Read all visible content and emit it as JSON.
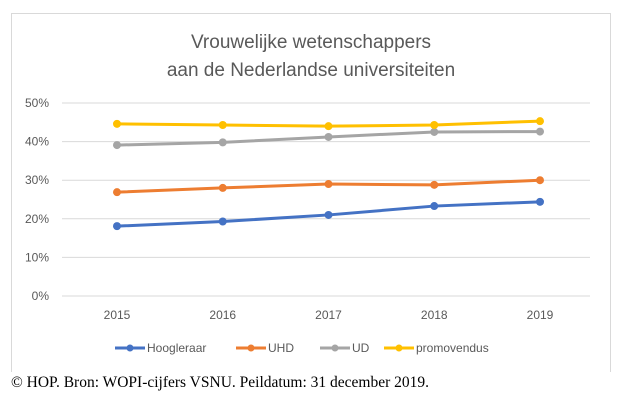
{
  "chart_data": {
    "type": "line",
    "title": [
      "Vrouwelijke wetenschappers",
      "aan de Nederlandse universiteiten"
    ],
    "xlabel": "",
    "ylabel": "",
    "categories": [
      "2015",
      "2016",
      "2017",
      "2018",
      "2019"
    ],
    "ylim": [
      0,
      50
    ],
    "yticks": [
      0,
      10,
      20,
      30,
      40,
      50
    ],
    "ytick_labels": [
      "0%",
      "10%",
      "20%",
      "30%",
      "40%",
      "50%"
    ],
    "grid": true,
    "legend_position": "bottom",
    "series": [
      {
        "name": "Hoogleraar",
        "color": "#4472c4",
        "values": [
          18.1,
          19.3,
          21.0,
          23.3,
          24.4
        ]
      },
      {
        "name": "UHD",
        "color": "#ed7d31",
        "values": [
          26.9,
          28.0,
          29.0,
          28.8,
          30.0
        ]
      },
      {
        "name": "UD",
        "color": "#a5a5a5",
        "values": [
          39.1,
          39.8,
          41.2,
          42.5,
          42.6
        ]
      },
      {
        "name": "promovendus",
        "color": "#ffc000",
        "values": [
          44.6,
          44.3,
          44.0,
          44.3,
          45.3
        ]
      }
    ]
  },
  "caption": "© HOP. Bron: WOPI-cijfers VSNU. Peildatum: 31 december 2019."
}
